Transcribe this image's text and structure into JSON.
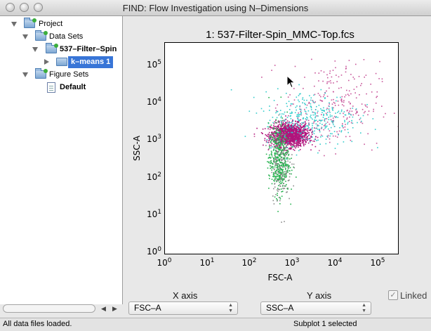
{
  "window": {
    "title": "FIND: Flow Investigation using N–Dimensions"
  },
  "sidebar": {
    "tree": [
      {
        "label": "Project",
        "icon": "open-folder-icon",
        "expanded": true
      },
      {
        "label": "Data Sets",
        "icon": "open-folder-icon",
        "expanded": true
      },
      {
        "label": "537–Filter–Spin",
        "icon": "open-folder-icon",
        "expanded": true
      },
      {
        "label": "k–means 1",
        "icon": "folder-icon",
        "expanded": false,
        "selected": true
      },
      {
        "label": "Figure Sets",
        "icon": "open-folder-icon",
        "expanded": true
      },
      {
        "label": "Default",
        "icon": "document-icon"
      }
    ]
  },
  "plot": {
    "title": "1: 537-Filter-Spin_MMC-Top.fcs",
    "xlabel": "FSC-A",
    "ylabel": "SSC-A"
  },
  "chart_data": {
    "type": "scatter",
    "title": "1: 537-Filter-Spin_MMC-Top.fcs",
    "xlabel": "FSC-A",
    "ylabel": "SSC-A",
    "x_scale": "log",
    "y_scale": "log",
    "xlim": [
      1,
      300000
    ],
    "ylim": [
      1,
      300000
    ],
    "x_ticks": [
      "10^0",
      "10^1",
      "10^2",
      "10^3",
      "10^4",
      "10^5"
    ],
    "y_ticks": [
      "10^0",
      "10^1",
      "10^2",
      "10^3",
      "10^4",
      "10^5"
    ],
    "grid": false,
    "series": [
      {
        "color": "#b0147c",
        "center": [
          800,
          1300
        ],
        "spread_log10": [
          0.22,
          0.15
        ],
        "count": 1400
      },
      {
        "color": "#c8559a",
        "center": [
          8000,
          8000
        ],
        "spread_log10": [
          0.55,
          0.55
        ],
        "count": 260
      },
      {
        "color": "#33cccc",
        "center": [
          2500,
          3500
        ],
        "spread_log10": [
          0.55,
          0.35
        ],
        "count": 330
      },
      {
        "color": "#22b14c",
        "center": [
          450,
          300
        ],
        "spread_log10": [
          0.12,
          0.45
        ],
        "count": 450
      },
      {
        "color": "#8a8a8a",
        "center": [
          500,
          250
        ],
        "spread_log10": [
          0.12,
          0.5
        ],
        "count": 160
      }
    ]
  },
  "controls": {
    "x_axis_label": "X axis",
    "y_axis_label": "Y axis",
    "x_axis_value": "FSC–A",
    "y_axis_value": "SSC–A",
    "linked_label": "Linked",
    "linked_checked": true
  },
  "status": {
    "left": "All data files loaded.",
    "right": "Subplot 1 selected"
  }
}
